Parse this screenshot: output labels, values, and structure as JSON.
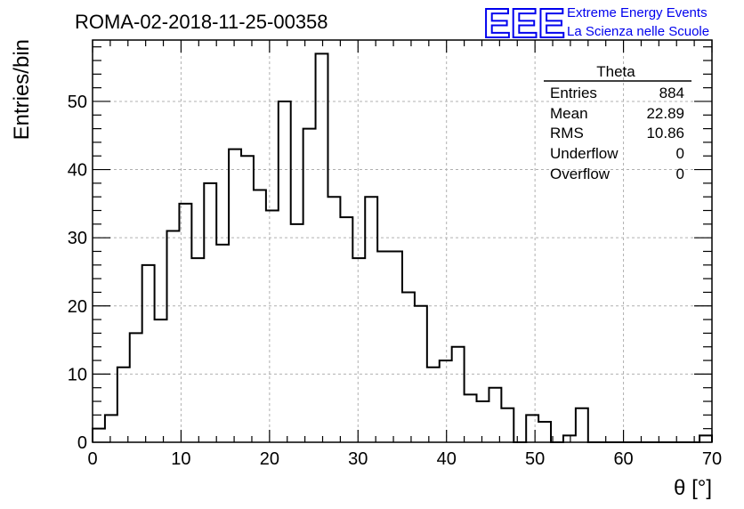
{
  "title": "ROMA-02-2018-11-25-00358",
  "logo": {
    "mark": "EEE",
    "line1": "Extreme Energy Events",
    "line2": "La Scienza nelle Scuole",
    "color": "#0000ee"
  },
  "stats": {
    "name": "Theta",
    "rows": [
      {
        "label": "Entries",
        "value": "884"
      },
      {
        "label": "Mean",
        "value": "22.89"
      },
      {
        "label": "RMS",
        "value": "10.86"
      },
      {
        "label": "Underflow",
        "value": "0"
      },
      {
        "label": "Overflow",
        "value": "0"
      }
    ]
  },
  "chart_data": {
    "type": "bar",
    "title": "ROMA-02-2018-11-25-00358",
    "xlabel": "θ [°]",
    "ylabel": "Entries/bin",
    "xlim": [
      0,
      70
    ],
    "ylim": [
      0,
      59
    ],
    "xticks": [
      0,
      10,
      20,
      30,
      40,
      50,
      60,
      70
    ],
    "yticks": [
      0,
      10,
      20,
      30,
      40,
      50
    ],
    "grid": true,
    "bin_width": 1.4,
    "values": [
      2,
      4,
      11,
      16,
      26,
      18,
      31,
      35,
      27,
      38,
      29,
      43,
      42,
      37,
      34,
      50,
      32,
      46,
      57,
      36,
      33,
      27,
      36,
      28,
      28,
      22,
      20,
      11,
      12,
      14,
      7,
      6,
      8,
      5,
      0,
      4,
      3,
      0,
      1,
      5,
      0,
      0,
      0,
      0,
      0,
      0,
      0,
      0,
      0,
      1
    ]
  }
}
